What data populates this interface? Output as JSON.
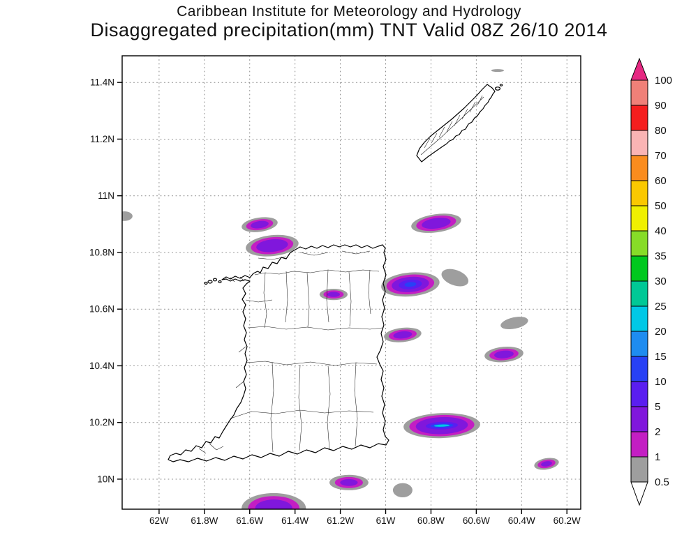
{
  "title": {
    "line1": "Caribbean Institute for Meteorology and Hydrology",
    "line2": "Disaggregated precipitation(mm) TNT Valid 08Z 26/10 2014"
  },
  "axes": {
    "lat_ticks": [
      {
        "label": "11.4N",
        "value": 11.4
      },
      {
        "label": "11.2N",
        "value": 11.2
      },
      {
        "label": "11N",
        "value": 11.0
      },
      {
        "label": "10.8N",
        "value": 10.8
      },
      {
        "label": "10.6N",
        "value": 10.6
      },
      {
        "label": "10.4N",
        "value": 10.4
      },
      {
        "label": "10.2N",
        "value": 10.2
      },
      {
        "label": "10N",
        "value": 10.0
      }
    ],
    "lon_ticks": [
      {
        "label": "62W",
        "value": -62.0
      },
      {
        "label": "61.8W",
        "value": -61.8
      },
      {
        "label": "61.6W",
        "value": -61.6
      },
      {
        "label": "61.4W",
        "value": -61.4
      },
      {
        "label": "61.2W",
        "value": -61.2
      },
      {
        "label": "61W",
        "value": -61.0
      },
      {
        "label": "60.8W",
        "value": -60.8
      },
      {
        "label": "60.6W",
        "value": -60.6
      },
      {
        "label": "60.4W",
        "value": -60.4
      },
      {
        "label": "60.2W",
        "value": -60.2
      }
    ]
  },
  "colorbar": {
    "units": "mm",
    "labels": [
      "100",
      "90",
      "80",
      "70",
      "60",
      "50",
      "40",
      "35",
      "30",
      "25",
      "20",
      "15",
      "10",
      "5",
      "2",
      "1",
      "0.5"
    ],
    "arrow_top": {
      "range": ">100",
      "color": "#e62882"
    },
    "arrow_bottom": {
      "range": "<0.5",
      "color": "#ffffff"
    },
    "segments": [
      {
        "min": 0.5,
        "range": "0.5-1",
        "color": "#9e9e9e"
      },
      {
        "min": 1,
        "range": "1-2",
        "color": "#c31ec3"
      },
      {
        "min": 2,
        "range": "2-5",
        "color": "#8017dc"
      },
      {
        "min": 5,
        "range": "5-10",
        "color": "#5a1ef0"
      },
      {
        "min": 10,
        "range": "10-15",
        "color": "#2841f5"
      },
      {
        "min": 15,
        "range": "15-20",
        "color": "#1e8cf0"
      },
      {
        "min": 20,
        "range": "20-25",
        "color": "#00c8e6"
      },
      {
        "min": 25,
        "range": "25-30",
        "color": "#00c896"
      },
      {
        "min": 30,
        "range": "30-35",
        "color": "#00c81e"
      },
      {
        "min": 35,
        "range": "35-40",
        "color": "#87dc28"
      },
      {
        "min": 40,
        "range": "40-50",
        "color": "#f0f000"
      },
      {
        "min": 50,
        "range": "50-60",
        "color": "#fac800"
      },
      {
        "min": 60,
        "range": "60-70",
        "color": "#fa8c1e"
      },
      {
        "min": 70,
        "range": "70-80",
        "color": "#fab4b4"
      },
      {
        "min": 80,
        "range": "80-90",
        "color": "#f51e1e"
      },
      {
        "min": 90,
        "range": "90-100",
        "color": "#f08078"
      }
    ]
  },
  "map": {
    "precip_areas": [
      {
        "lon": -62.154,
        "lat": 10.928,
        "rx": 0.037,
        "ry": 0.017,
        "rot": 0,
        "layers": [
          {
            "level": 0.5,
            "scale": 1
          }
        ]
      },
      {
        "lon": -61.556,
        "lat": 10.898,
        "rx": 0.08,
        "ry": 0.025,
        "rot": -8,
        "layers": [
          {
            "level": 0.5,
            "scale": 1
          },
          {
            "level": 1,
            "scale": 0.75
          },
          {
            "level": 2,
            "scale": 0.5
          }
        ]
      },
      {
        "lon": -61.501,
        "lat": 10.824,
        "rx": 0.117,
        "ry": 0.037,
        "rot": -6,
        "layers": [
          {
            "level": 0.5,
            "scale": 1
          },
          {
            "level": 1,
            "scale": 0.8
          },
          {
            "level": 2,
            "scale": 0.6
          }
        ]
      },
      {
        "lon": -61.23,
        "lat": 10.652,
        "rx": 0.062,
        "ry": 0.02,
        "rot": 0,
        "layers": [
          {
            "level": 0.5,
            "scale": 1
          },
          {
            "level": 1,
            "scale": 0.72
          },
          {
            "level": 2,
            "scale": 0.45
          }
        ]
      },
      {
        "lon": -60.777,
        "lat": 10.903,
        "rx": 0.111,
        "ry": 0.032,
        "rot": -8,
        "layers": [
          {
            "level": 0.5,
            "scale": 1
          },
          {
            "level": 1,
            "scale": 0.8
          },
          {
            "level": 2,
            "scale": 0.58
          }
        ]
      },
      {
        "lon": -60.891,
        "lat": 10.687,
        "rx": 0.129,
        "ry": 0.042,
        "rot": -5,
        "layers": [
          {
            "level": 0.5,
            "scale": 1
          },
          {
            "level": 1,
            "scale": 0.82
          },
          {
            "level": 2,
            "scale": 0.64
          },
          {
            "level": 5,
            "scale": 0.4
          },
          {
            "level": 10,
            "scale": 0.2
          }
        ]
      },
      {
        "lon": -60.694,
        "lat": 10.711,
        "rx": 0.062,
        "ry": 0.027,
        "rot": 20,
        "layers": [
          {
            "level": 0.5,
            "scale": 1
          }
        ]
      },
      {
        "lon": -60.925,
        "lat": 10.509,
        "rx": 0.083,
        "ry": 0.025,
        "rot": -6,
        "layers": [
          {
            "level": 0.5,
            "scale": 1
          },
          {
            "level": 1,
            "scale": 0.75
          },
          {
            "level": 2,
            "scale": 0.5
          }
        ]
      },
      {
        "lon": -60.432,
        "lat": 10.551,
        "rx": 0.062,
        "ry": 0.02,
        "rot": -12,
        "layers": [
          {
            "level": 0.5,
            "scale": 1
          }
        ]
      },
      {
        "lon": -60.478,
        "lat": 10.44,
        "rx": 0.086,
        "ry": 0.027,
        "rot": -5,
        "layers": [
          {
            "level": 0.5,
            "scale": 1
          },
          {
            "level": 1,
            "scale": 0.75
          },
          {
            "level": 2,
            "scale": 0.5
          }
        ]
      },
      {
        "lon": -60.752,
        "lat": 10.189,
        "rx": 0.169,
        "ry": 0.044,
        "rot": -2,
        "layers": [
          {
            "level": 0.5,
            "scale": 1
          },
          {
            "level": 1,
            "scale": 0.85
          },
          {
            "level": 2,
            "scale": 0.68
          },
          {
            "level": 5,
            "scale": 0.42,
            "sy": 0.3
          },
          {
            "level": 10,
            "scale": 0.3,
            "sy": 0.17
          },
          {
            "level": 20,
            "scale": 0.2,
            "sy": 0.09
          }
        ]
      },
      {
        "lon": -60.29,
        "lat": 10.054,
        "rx": 0.055,
        "ry": 0.02,
        "rot": -10,
        "layers": [
          {
            "level": 0.5,
            "scale": 1
          },
          {
            "level": 1,
            "scale": 0.72
          },
          {
            "level": 2,
            "scale": 0.45
          }
        ]
      },
      {
        "lon": -61.162,
        "lat": 9.988,
        "rx": 0.086,
        "ry": 0.027,
        "rot": 0,
        "layers": [
          {
            "level": 0.5,
            "scale": 1
          },
          {
            "level": 1,
            "scale": 0.72
          },
          {
            "level": 2,
            "scale": 0.45
          }
        ]
      },
      {
        "lon": -61.494,
        "lat": 9.897,
        "rx": 0.142,
        "ry": 0.054,
        "rot": 0,
        "layers": [
          {
            "level": 0.5,
            "scale": 1
          },
          {
            "level": 1,
            "scale": 0.8
          },
          {
            "level": 2,
            "scale": 0.58
          }
        ]
      },
      {
        "lon": -60.925,
        "lat": 9.961,
        "rx": 0.043,
        "ry": 0.025,
        "rot": 0,
        "layers": [
          {
            "level": 0.5,
            "scale": 1
          }
        ]
      },
      {
        "lon": -60.506,
        "lat": 11.442,
        "rx": 0.028,
        "ry": 0.005,
        "rot": 0,
        "layers": [
          {
            "level": 0.5,
            "scale": 1
          }
        ]
      }
    ]
  }
}
